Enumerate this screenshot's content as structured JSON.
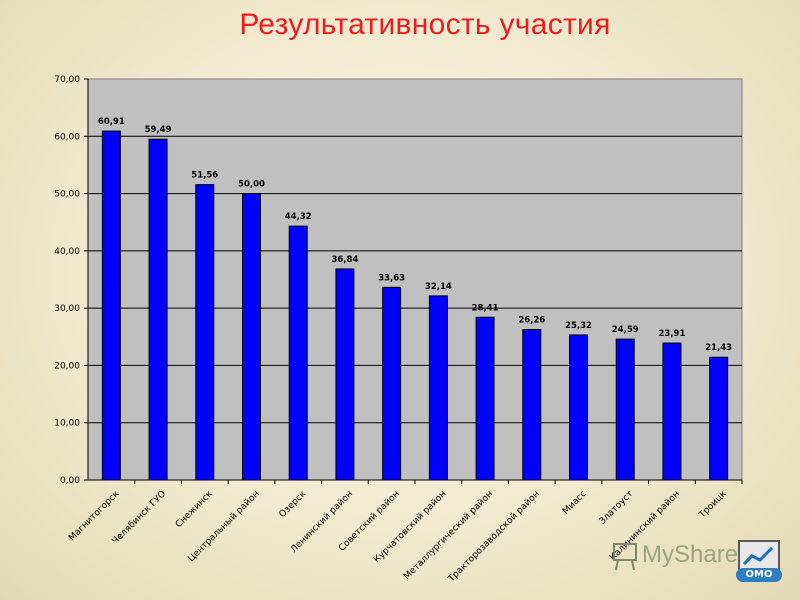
{
  "chart_data": {
    "type": "bar",
    "title": "Результативность участия",
    "categories": [
      "Магнитогорск",
      "Челябинск ГУО",
      "Снежинск",
      "Центральный район",
      "Озерск",
      "Ленинский район",
      "Советский район",
      "Курчатовский район",
      "Металлургический район",
      "Тракторозаводской район",
      "Миасс",
      "Златоуст",
      "Калининский район",
      "Троицк"
    ],
    "values": [
      60.91,
      59.49,
      51.56,
      50.0,
      44.32,
      36.84,
      33.63,
      32.14,
      28.41,
      26.26,
      25.32,
      24.59,
      23.91,
      21.43
    ],
    "data_labels": [
      "60,91",
      "59,49",
      "51,56",
      "50,00",
      "44,32",
      "36,84",
      "33,63",
      "32,14",
      "28,41",
      "26,26",
      "25,32",
      "24,59",
      "23,91",
      "21,43"
    ],
    "y_ticks": [
      "0,00",
      "10,00",
      "20,00",
      "30,00",
      "40,00",
      "50,00",
      "60,00",
      "70,00"
    ],
    "ylim": [
      0,
      70
    ],
    "grid": true,
    "bar_color": "#0000ff",
    "plot_background": "#c0c0c0"
  },
  "watermark": {
    "text": "MyShared",
    "logo_text": "ОМО"
  }
}
